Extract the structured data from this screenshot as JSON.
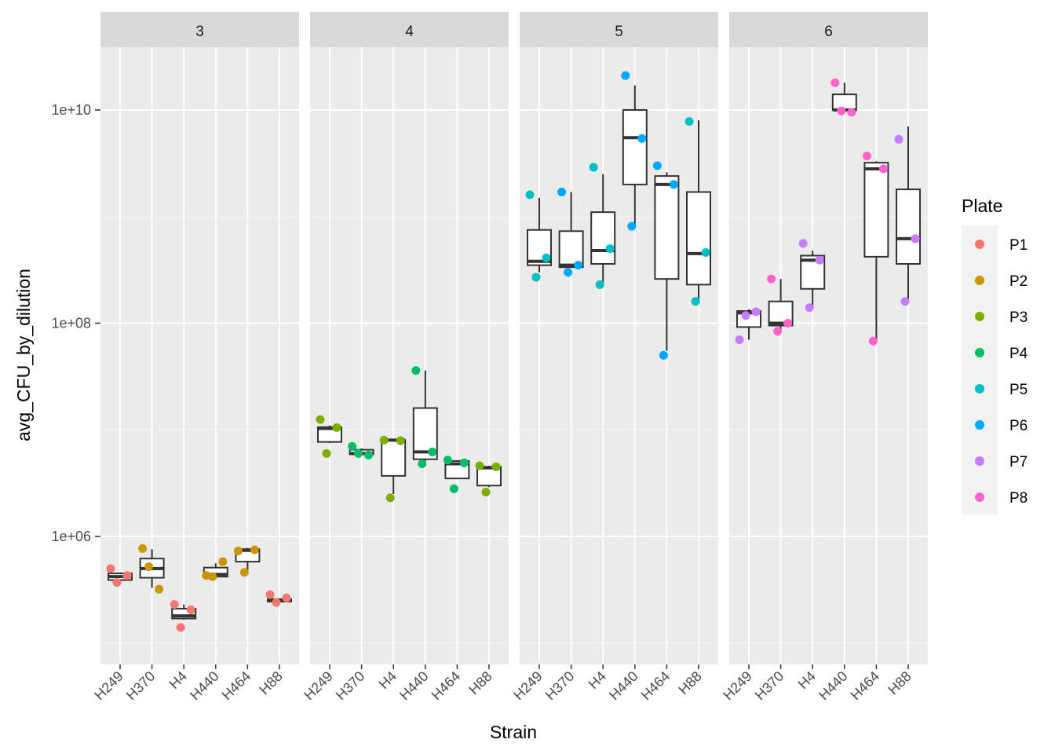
{
  "chart_data": {
    "type": "boxplot",
    "facets": [
      "3",
      "4",
      "5",
      "6"
    ],
    "categories": [
      "H249",
      "H370",
      "H4",
      "H440",
      "H464",
      "H88"
    ],
    "xlabel": "Strain",
    "ylabel": "avg_CFU_by_dilution",
    "y_scale": "log10",
    "ylim": [
      100000,
      50000000000
    ],
    "y_ticks": [
      1000000,
      100000000,
      10000000000
    ],
    "y_tick_labels": [
      "1e+06",
      "1e+08",
      "1e+10"
    ],
    "grid": true,
    "legend": {
      "title": "Plate",
      "position": "right",
      "items": [
        {
          "name": "P1",
          "color": "#F8766D"
        },
        {
          "name": "P2",
          "color": "#CD9600"
        },
        {
          "name": "P3",
          "color": "#7CAE00"
        },
        {
          "name": "P4",
          "color": "#00BE67"
        },
        {
          "name": "P5",
          "color": "#00BFC4"
        },
        {
          "name": "P6",
          "color": "#00A9FF"
        },
        {
          "name": "P7",
          "color": "#C77CFF"
        },
        {
          "name": "P8",
          "color": "#FF61CC"
        }
      ]
    },
    "panels": [
      {
        "facet": "3",
        "boxes": [
          {
            "strain": "H249",
            "min": 380000,
            "q1": 390000,
            "median": 420000,
            "q3": 450000,
            "max": 460000
          },
          {
            "strain": "H370",
            "min": 330000,
            "q1": 410000,
            "median": 500000,
            "q3": 620000,
            "max": 760000
          },
          {
            "strain": "H4",
            "min": 165000,
            "q1": 170000,
            "median": 180000,
            "q3": 210000,
            "max": 230000
          },
          {
            "strain": "H440",
            "min": 400000,
            "q1": 420000,
            "median": 440000,
            "q3": 510000,
            "max": 560000
          },
          {
            "strain": "H464",
            "min": 470000,
            "q1": 580000,
            "median": 740000,
            "q3": 760000,
            "max": 780000
          },
          {
            "strain": "H88",
            "min": 245000,
            "q1": 245000,
            "median": 250000,
            "q3": 258000,
            "max": 260000
          }
        ],
        "points": [
          {
            "strain": "H249",
            "plate": "P1",
            "y": 500000
          },
          {
            "strain": "H249",
            "plate": "P1",
            "y": 430000
          },
          {
            "strain": "H249",
            "plate": "P1",
            "y": 370000
          },
          {
            "strain": "H370",
            "plate": "P2",
            "y": 770000
          },
          {
            "strain": "H370",
            "plate": "P2",
            "y": 320000
          },
          {
            "strain": "H370",
            "plate": "P2",
            "y": 520000
          },
          {
            "strain": "H4",
            "plate": "P1",
            "y": 230000
          },
          {
            "strain": "H4",
            "plate": "P1",
            "y": 205000
          },
          {
            "strain": "H4",
            "plate": "P1",
            "y": 140000
          },
          {
            "strain": "H440",
            "plate": "P2",
            "y": 430000
          },
          {
            "strain": "H440",
            "plate": "P2",
            "y": 580000
          },
          {
            "strain": "H440",
            "plate": "P2",
            "y": 420000
          },
          {
            "strain": "H464",
            "plate": "P2",
            "y": 730000
          },
          {
            "strain": "H464",
            "plate": "P2",
            "y": 750000
          },
          {
            "strain": "H464",
            "plate": "P2",
            "y": 460000
          },
          {
            "strain": "H88",
            "plate": "P1",
            "y": 285000
          },
          {
            "strain": "H88",
            "plate": "P1",
            "y": 265000
          },
          {
            "strain": "H88",
            "plate": "P1",
            "y": 240000
          }
        ]
      },
      {
        "facet": "4",
        "boxes": [
          {
            "strain": "H249",
            "min": 7500000,
            "q1": 7700000,
            "median": 10300000,
            "q3": 10600000,
            "max": 11000000
          },
          {
            "strain": "H370",
            "min": 5800000,
            "q1": 5900000,
            "median": 6000000,
            "q3": 6500000,
            "max": 6700000
          },
          {
            "strain": "H4",
            "min": 2500000,
            "q1": 3700000,
            "median": 8000000,
            "q3": 8000000,
            "max": 8100000
          },
          {
            "strain": "H440",
            "min": 5100000,
            "q1": 5300000,
            "median": 6200000,
            "q3": 16000000,
            "max": 36000000
          },
          {
            "strain": "H464",
            "min": 3500000,
            "q1": 3500000,
            "median": 4800000,
            "q3": 5100000,
            "max": 5200000
          },
          {
            "strain": "H88",
            "min": 2900000,
            "q1": 3000000,
            "median": 4400000,
            "q3": 4500000,
            "max": 4600000
          }
        ],
        "points": [
          {
            "strain": "H249",
            "plate": "P3",
            "y": 12500000
          },
          {
            "strain": "H249",
            "plate": "P3",
            "y": 10500000
          },
          {
            "strain": "H249",
            "plate": "P3",
            "y": 6000000
          },
          {
            "strain": "H370",
            "plate": "P4",
            "y": 7000000
          },
          {
            "strain": "H370",
            "plate": "P4",
            "y": 5800000
          },
          {
            "strain": "H370",
            "plate": "P4",
            "y": 6000000
          },
          {
            "strain": "H4",
            "plate": "P3",
            "y": 8000000
          },
          {
            "strain": "H4",
            "plate": "P3",
            "y": 7900000
          },
          {
            "strain": "H4",
            "plate": "P3",
            "y": 2300000
          },
          {
            "strain": "H440",
            "plate": "P4",
            "y": 36000000
          },
          {
            "strain": "H440",
            "plate": "P4",
            "y": 6200000
          },
          {
            "strain": "H440",
            "plate": "P4",
            "y": 4800000
          },
          {
            "strain": "H464",
            "plate": "P4",
            "y": 5200000
          },
          {
            "strain": "H464",
            "plate": "P4",
            "y": 4900000
          },
          {
            "strain": "H464",
            "plate": "P4",
            "y": 2800000
          },
          {
            "strain": "H88",
            "plate": "P3",
            "y": 4600000
          },
          {
            "strain": "H88",
            "plate": "P3",
            "y": 4500000
          },
          {
            "strain": "H88",
            "plate": "P3",
            "y": 2600000
          }
        ]
      },
      {
        "facet": "5",
        "boxes": [
          {
            "strain": "H249",
            "min": 300000000,
            "q1": 350000000,
            "median": 380000000,
            "q3": 750000000,
            "max": 1500000000
          },
          {
            "strain": "H370",
            "min": 330000000,
            "q1": 335000000,
            "median": 350000000,
            "q3": 730000000,
            "max": 1700000000
          },
          {
            "strain": "H4",
            "min": 240000000,
            "q1": 360000000,
            "median": 480000000,
            "q3": 1100000000,
            "max": 2500000000
          },
          {
            "strain": "H440",
            "min": 800000000,
            "q1": 2000000000,
            "median": 5500000000,
            "q3": 10000000000,
            "max": 17000000000
          },
          {
            "strain": "H464",
            "min": 55000000,
            "q1": 260000000,
            "median": 2000000000,
            "q3": 2400000000,
            "max": 2600000000
          },
          {
            "strain": "H88",
            "min": 160000000,
            "q1": 230000000,
            "median": 450000000,
            "q3": 1700000000,
            "max": 8000000000
          }
        ],
        "points": [
          {
            "strain": "H249",
            "plate": "P5",
            "y": 1600000000
          },
          {
            "strain": "H249",
            "plate": "P5",
            "y": 410000000
          },
          {
            "strain": "H249",
            "plate": "P5",
            "y": 270000000
          },
          {
            "strain": "H370",
            "plate": "P6",
            "y": 1700000000
          },
          {
            "strain": "H370",
            "plate": "P6",
            "y": 350000000
          },
          {
            "strain": "H370",
            "plate": "P6",
            "y": 300000000
          },
          {
            "strain": "H4",
            "plate": "P5",
            "y": 2900000000
          },
          {
            "strain": "H4",
            "plate": "P5",
            "y": 500000000
          },
          {
            "strain": "H4",
            "plate": "P5",
            "y": 230000000
          },
          {
            "strain": "H440",
            "plate": "P6",
            "y": 21000000000
          },
          {
            "strain": "H440",
            "plate": "P6",
            "y": 5400000000
          },
          {
            "strain": "H440",
            "plate": "P6",
            "y": 810000000
          },
          {
            "strain": "H464",
            "plate": "P6",
            "y": 3000000000
          },
          {
            "strain": "H464",
            "plate": "P6",
            "y": 2000000000
          },
          {
            "strain": "H464",
            "plate": "P6",
            "y": 50000000
          },
          {
            "strain": "H88",
            "plate": "P5",
            "y": 7800000000
          },
          {
            "strain": "H88",
            "plate": "P5",
            "y": 460000000
          },
          {
            "strain": "H88",
            "plate": "P5",
            "y": 160000000
          }
        ]
      },
      {
        "facet": "6",
        "boxes": [
          {
            "strain": "H249",
            "min": 70000000,
            "q1": 92000000,
            "median": 125000000,
            "q3": 130000000,
            "max": 135000000
          },
          {
            "strain": "H370",
            "min": 88000000,
            "q1": 95000000,
            "median": 100000000,
            "q3": 160000000,
            "max": 260000000
          },
          {
            "strain": "H4",
            "min": 140000000,
            "q1": 210000000,
            "median": 390000000,
            "q3": 430000000,
            "max": 480000000
          },
          {
            "strain": "H440",
            "min": 9500000000,
            "q1": 10000000000,
            "median": 10000000000,
            "q3": 14000000000,
            "max": 18000000000
          },
          {
            "strain": "H464",
            "min": 68000000,
            "q1": 420000000,
            "median": 2800000000,
            "q3": 3200000000,
            "max": 3300000000
          },
          {
            "strain": "H88",
            "min": 160000000,
            "q1": 360000000,
            "median": 620000000,
            "q3": 1800000000,
            "max": 7000000000
          }
        ],
        "points": [
          {
            "strain": "H249",
            "plate": "P7",
            "y": 70000000
          },
          {
            "strain": "H249",
            "plate": "P7",
            "y": 128000000
          },
          {
            "strain": "H249",
            "plate": "P7",
            "y": 118000000
          },
          {
            "strain": "H370",
            "plate": "P8",
            "y": 260000000
          },
          {
            "strain": "H370",
            "plate": "P8",
            "y": 100000000
          },
          {
            "strain": "H370",
            "plate": "P8",
            "y": 84000000
          },
          {
            "strain": "H4",
            "plate": "P7",
            "y": 560000000
          },
          {
            "strain": "H4",
            "plate": "P7",
            "y": 390000000
          },
          {
            "strain": "H4",
            "plate": "P7",
            "y": 140000000
          },
          {
            "strain": "H440",
            "plate": "P8",
            "y": 18000000000
          },
          {
            "strain": "H440",
            "plate": "P8",
            "y": 9500000000
          },
          {
            "strain": "H440",
            "plate": "P8",
            "y": 9800000000
          },
          {
            "strain": "H464",
            "plate": "P8",
            "y": 3700000000
          },
          {
            "strain": "H464",
            "plate": "P8",
            "y": 2800000000
          },
          {
            "strain": "H464",
            "plate": "P8",
            "y": 68000000
          },
          {
            "strain": "H88",
            "plate": "P7",
            "y": 5300000000
          },
          {
            "strain": "H88",
            "plate": "P7",
            "y": 620000000
          },
          {
            "strain": "H88",
            "plate": "P7",
            "y": 160000000
          }
        ]
      }
    ]
  }
}
